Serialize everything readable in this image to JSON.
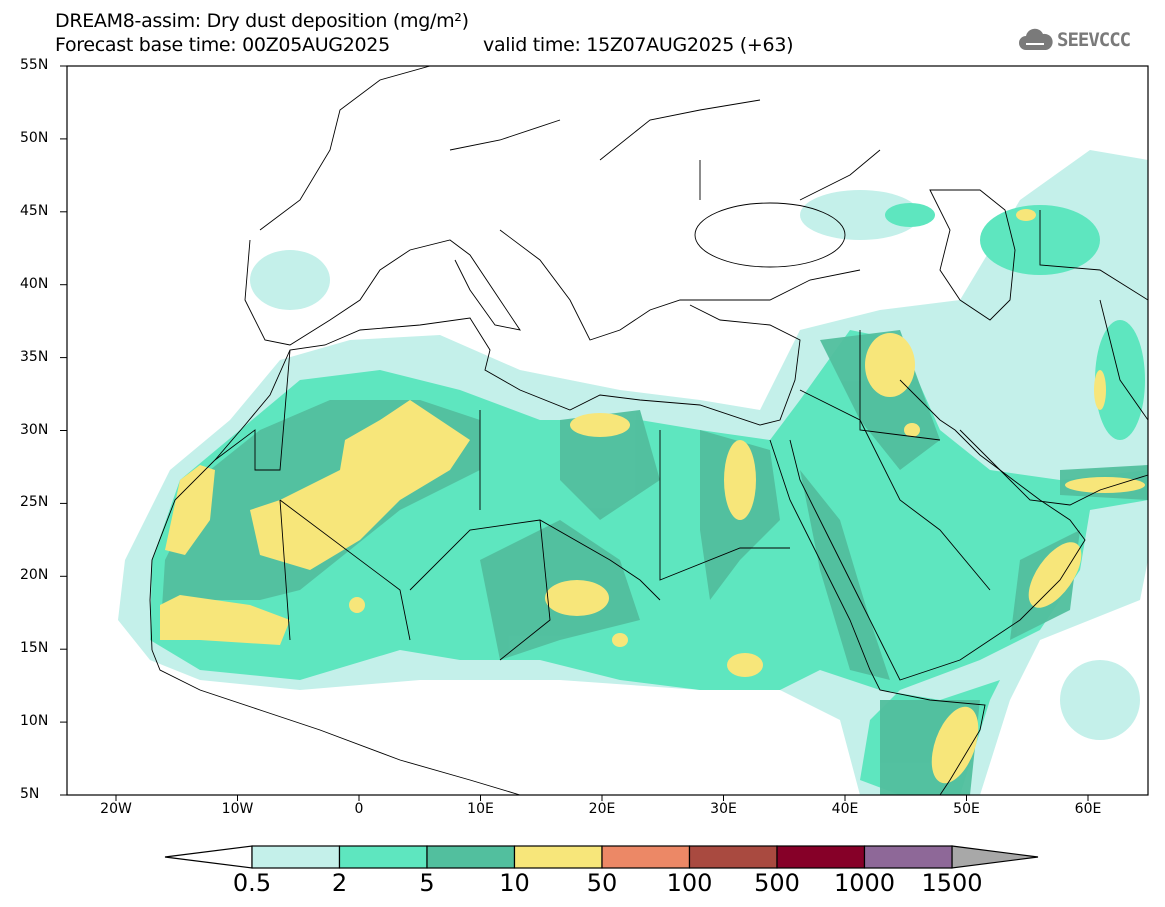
{
  "header": {
    "title": "DREAM8-assim: Dry dust deposition (mg/m²)",
    "base_time": "Forecast base time: 00Z05AUG2025",
    "valid_time": "valid time: 15Z07AUG2025 (+63)",
    "logo": "SEEVCCC"
  },
  "map": {
    "lat_labels": [
      {
        "v": 55,
        "t": "55N"
      },
      {
        "v": 50,
        "t": "50N"
      },
      {
        "v": 45,
        "t": "45N"
      },
      {
        "v": 40,
        "t": "40N"
      },
      {
        "v": 35,
        "t": "35N"
      },
      {
        "v": 30,
        "t": "30N"
      },
      {
        "v": 25,
        "t": "25N"
      },
      {
        "v": 20,
        "t": "20N"
      },
      {
        "v": 15,
        "t": "15N"
      },
      {
        "v": 10,
        "t": "10N"
      },
      {
        "v": 5,
        "t": "5N"
      }
    ],
    "lon_labels": [
      {
        "v": -20,
        "t": "20W"
      },
      {
        "v": -10,
        "t": "10W"
      },
      {
        "v": 0,
        "t": "0"
      },
      {
        "v": 10,
        "t": "10E"
      },
      {
        "v": 20,
        "t": "20E"
      },
      {
        "v": 30,
        "t": "30E"
      },
      {
        "v": 40,
        "t": "40E"
      },
      {
        "v": 50,
        "t": "50E"
      },
      {
        "v": 60,
        "t": "60E"
      }
    ]
  },
  "colorbar": {
    "labels": [
      "0.5",
      "2",
      "5",
      "10",
      "50",
      "100",
      "500",
      "1000",
      "1500"
    ],
    "colors": [
      "#c4f0ea",
      "#5ee6bf",
      "#52bf9e",
      "#f7e67a",
      "#ec8866",
      "#a94a40",
      "#860028",
      "#8e6898"
    ],
    "below_color": "#ffffff",
    "above_color": "#a8a8a8"
  }
}
